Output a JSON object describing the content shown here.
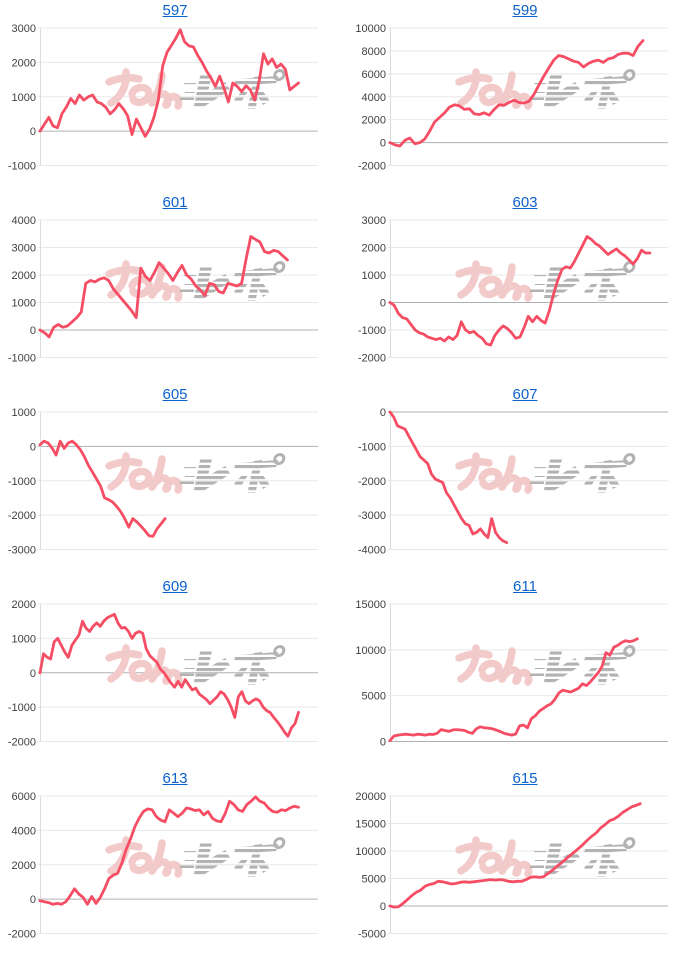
{
  "page": {
    "background": "#ffffff",
    "columns": 2,
    "rows": 5
  },
  "style": {
    "line_color": "#f54d64",
    "grid_color": "#e8e8e8",
    "zero_line_color": "#b0b0b0",
    "axis_line_color": "#dcdcdc",
    "link_color": "#0d62c9",
    "tick_color": "#3f3f3f"
  },
  "watermark": {
    "label": "みんレポ",
    "pink_text": "みん",
    "gray_text": "レポ",
    "pink_color": "#f2caca",
    "gray_color": "#b2b2b2"
  },
  "chart_data": [
    {
      "type": "line",
      "title": "597",
      "ylim": [
        -1000,
        3000
      ],
      "yticks": [
        3000,
        2000,
        1000,
        0,
        -1000
      ],
      "x_span": 0.93,
      "grid": true,
      "legend": "none",
      "values": [
        0,
        200,
        400,
        150,
        100,
        500,
        700,
        950,
        800,
        1050,
        900,
        1000,
        1050,
        850,
        800,
        700,
        500,
        620,
        800,
        650,
        450,
        -100,
        350,
        100,
        -150,
        60,
        400,
        900,
        1900,
        2300,
        2500,
        2700,
        2950,
        2600,
        2480,
        2450,
        2200,
        2000,
        1750,
        1550,
        1300,
        1600,
        1250,
        850,
        1400,
        1300,
        1150,
        1320,
        1200,
        900,
        1450,
        2250,
        1950,
        2100,
        1850,
        1950,
        1800,
        1200,
        1300,
        1400
      ]
    },
    {
      "type": "line",
      "title": "599",
      "ylim": [
        -2000,
        10000
      ],
      "yticks": [
        10000,
        8000,
        6000,
        4000,
        2000,
        0,
        -2000
      ],
      "x_span": 0.91,
      "grid": true,
      "legend": "none",
      "values": [
        0,
        -200,
        -300,
        200,
        400,
        -100,
        0,
        300,
        1000,
        1800,
        2200,
        2600,
        3100,
        3300,
        3200,
        2900,
        2950,
        2500,
        2450,
        2600,
        2400,
        2900,
        3300,
        3250,
        3500,
        3700,
        3500,
        3450,
        3600,
        4200,
        5000,
        5800,
        6500,
        7200,
        7600,
        7500,
        7300,
        7100,
        7000,
        6600,
        6900,
        7100,
        7200,
        7000,
        7300,
        7400,
        7700,
        7800,
        7800,
        7600,
        8400,
        8900
      ]
    },
    {
      "type": "line",
      "title": "601",
      "ylim": [
        -1000,
        4000
      ],
      "yticks": [
        4000,
        3000,
        2000,
        1000,
        0,
        -1000
      ],
      "x_span": 0.89,
      "grid": true,
      "legend": "none",
      "values": [
        0,
        -100,
        -250,
        100,
        200,
        100,
        150,
        300,
        450,
        650,
        1700,
        1800,
        1750,
        1850,
        1900,
        1800,
        1500,
        1300,
        1100,
        900,
        700,
        450,
        2250,
        1950,
        1800,
        2100,
        2450,
        2250,
        2050,
        1800,
        2100,
        2350,
        2000,
        1850,
        1600,
        1450,
        1250,
        1700,
        1650,
        1400,
        1350,
        1700,
        1650,
        1600,
        1700,
        2600,
        3400,
        3300,
        3200,
        2850,
        2800,
        2900,
        2850,
        2700,
        2550
      ]
    },
    {
      "type": "line",
      "title": "603",
      "ylim": [
        -2000,
        3000
      ],
      "yticks": [
        3000,
        2000,
        1000,
        0,
        -1000,
        -2000
      ],
      "x_span": 0.935,
      "grid": true,
      "legend": "none",
      "values": [
        0,
        -100,
        -400,
        -550,
        -600,
        -800,
        -1000,
        -1100,
        -1150,
        -1250,
        -1300,
        -1350,
        -1300,
        -1400,
        -1250,
        -1350,
        -1200,
        -700,
        -1000,
        -1100,
        -1050,
        -1200,
        -1300,
        -1500,
        -1550,
        -1200,
        -1000,
        -850,
        -950,
        -1100,
        -1300,
        -1250,
        -900,
        -500,
        -700,
        -500,
        -650,
        -750,
        -300,
        300,
        800,
        1200,
        1300,
        1250,
        1500,
        1800,
        2100,
        2400,
        2300,
        2150,
        2050,
        1900,
        1750,
        1850,
        1950,
        1800,
        1700,
        1550,
        1400,
        1600,
        1900,
        1800,
        1800
      ]
    },
    {
      "type": "line",
      "title": "605",
      "ylim": [
        -3000,
        1000
      ],
      "yticks": [
        1000,
        0,
        -1000,
        -2000,
        -3000
      ],
      "x_span": 0.45,
      "grid": true,
      "legend": "none",
      "values": [
        50,
        150,
        100,
        -50,
        -250,
        150,
        -60,
        100,
        150,
        50,
        -100,
        -300,
        -550,
        -750,
        -950,
        -1150,
        -1500,
        -1550,
        -1620,
        -1750,
        -1900,
        -2100,
        -2350,
        -2100,
        -2200,
        -2320,
        -2450,
        -2600,
        -2620,
        -2400,
        -2250,
        -2100
      ]
    },
    {
      "type": "line",
      "title": "607",
      "ylim": [
        -4000,
        0
      ],
      "yticks": [
        0,
        -1000,
        -2000,
        -3000,
        -4000
      ],
      "x_span": 0.42,
      "grid": true,
      "legend": "none",
      "values": [
        0,
        -150,
        -400,
        -450,
        -500,
        -700,
        -900,
        -1100,
        -1300,
        -1400,
        -1500,
        -1800,
        -1950,
        -2000,
        -2050,
        -2350,
        -2500,
        -2700,
        -2900,
        -3100,
        -3250,
        -3300,
        -3550,
        -3500,
        -3400,
        -3550,
        -3650,
        -3100,
        -3500,
        -3650,
        -3750,
        -3800
      ]
    },
    {
      "type": "line",
      "title": "609",
      "ylim": [
        -2000,
        2000
      ],
      "yticks": [
        2000,
        1000,
        0,
        -1000,
        -2000
      ],
      "x_span": 0.93,
      "grid": true,
      "legend": "none",
      "values": [
        0,
        550,
        450,
        400,
        900,
        1000,
        800,
        600,
        450,
        800,
        950,
        1100,
        1500,
        1300,
        1200,
        1350,
        1450,
        1350,
        1500,
        1600,
        1650,
        1700,
        1450,
        1300,
        1320,
        1200,
        1000,
        1150,
        1200,
        1150,
        700,
        500,
        400,
        300,
        100,
        0,
        -150,
        -300,
        -420,
        -250,
        -420,
        -200,
        -350,
        -500,
        -450,
        -620,
        -700,
        -780,
        -900,
        -800,
        -700,
        -550,
        -620,
        -780,
        -1000,
        -1300,
        -700,
        -550,
        -820,
        -900,
        -820,
        -760,
        -820,
        -1000,
        -1100,
        -1160,
        -1300,
        -1420,
        -1560,
        -1720,
        -1850,
        -1600,
        -1480,
        -1150
      ]
    },
    {
      "type": "line",
      "title": "611",
      "ylim": [
        0,
        15000
      ],
      "yticks": [
        15000,
        10000,
        5000,
        0
      ],
      "x_span": 0.89,
      "grid": true,
      "legend": "none",
      "values": [
        100,
        600,
        700,
        750,
        800,
        750,
        700,
        800,
        760,
        700,
        800,
        760,
        900,
        1300,
        1200,
        1100,
        1260,
        1300,
        1250,
        1200,
        1000,
        900,
        1400,
        1600,
        1500,
        1460,
        1400,
        1250,
        1100,
        900,
        800,
        700,
        820,
        1700,
        1800,
        1500,
        2500,
        2800,
        3300,
        3600,
        3900,
        4100,
        4600,
        5300,
        5600,
        5500,
        5400,
        5600,
        5800,
        6300,
        6100,
        6500,
        7000,
        7500,
        8200,
        9700,
        9400,
        10300,
        10500,
        10800,
        11000,
        10900,
        11000,
        11200
      ]
    },
    {
      "type": "line",
      "title": "613",
      "ylim": [
        -2000,
        6000
      ],
      "yticks": [
        6000,
        4000,
        2000,
        0,
        -2000
      ],
      "x_span": 0.93,
      "grid": true,
      "legend": "none",
      "values": [
        -100,
        -150,
        -200,
        -300,
        -250,
        -300,
        -150,
        200,
        600,
        300,
        100,
        -300,
        150,
        -250,
        100,
        600,
        1200,
        1400,
        1500,
        2100,
        2900,
        3500,
        4200,
        4700,
        5100,
        5250,
        5200,
        4800,
        4600,
        4500,
        5200,
        5000,
        4800,
        5000,
        5300,
        5250,
        5150,
        5200,
        4900,
        5100,
        4700,
        4550,
        4500,
        5000,
        5700,
        5500,
        5200,
        5100,
        5500,
        5700,
        5950,
        5700,
        5600,
        5300,
        5100,
        5050,
        5200,
        5150,
        5300,
        5400,
        5350
      ]
    },
    {
      "type": "line",
      "title": "615",
      "ylim": [
        -5000,
        20000
      ],
      "yticks": [
        20000,
        15000,
        10000,
        5000,
        0,
        -5000
      ],
      "x_span": 0.9,
      "grid": true,
      "legend": "none",
      "values": [
        0,
        -200,
        -100,
        500,
        1200,
        1900,
        2500,
        2900,
        3600,
        3900,
        4100,
        4500,
        4400,
        4200,
        4000,
        4100,
        4300,
        4400,
        4300,
        4400,
        4500,
        4600,
        4700,
        4800,
        4700,
        4800,
        4700,
        4500,
        4400,
        4500,
        4500,
        4800,
        5200,
        5300,
        5200,
        5300,
        5900,
        6500,
        7200,
        7800,
        8500,
        9200,
        9800,
        10500,
        11200,
        12000,
        12700,
        13300,
        14200,
        14800,
        15500,
        15800,
        16300,
        17000,
        17500,
        18000,
        18300,
        18600
      ]
    }
  ]
}
